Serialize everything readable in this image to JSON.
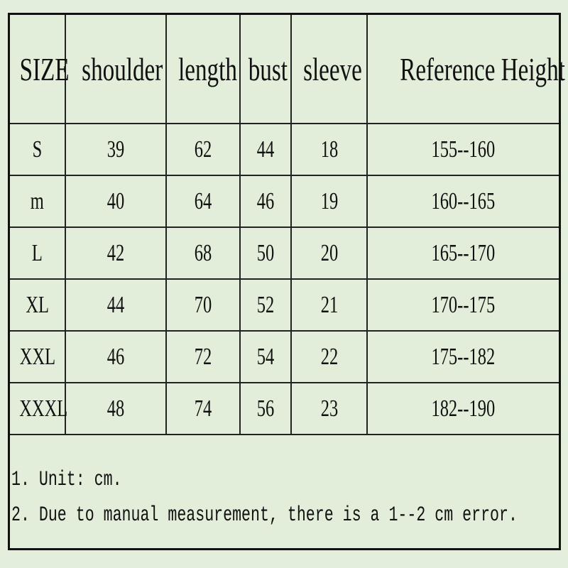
{
  "headers": [
    "SIZE",
    "shoulder",
    "length",
    "bust",
    "sleeve",
    "Reference Height"
  ],
  "rows": [
    [
      "S",
      "39",
      "62",
      "44",
      "18",
      "155--160"
    ],
    [
      "m",
      "40",
      "64",
      "46",
      "19",
      "160--165"
    ],
    [
      "L",
      "42",
      "68",
      "50",
      "20",
      "165--170"
    ],
    [
      "XL",
      "44",
      "70",
      "52",
      "21",
      "170--175"
    ],
    [
      "XXL",
      "46",
      "72",
      "54",
      "22",
      "175--182"
    ],
    [
      "XXXL",
      "48",
      "74",
      "56",
      "23",
      "182--190"
    ]
  ],
  "notes": [
    "1. Unit: cm.",
    "2. Due to manual measurement, there is a 1--2 cm error."
  ],
  "colors": {
    "background": "#e4eedd",
    "border": "#111111",
    "text": "#111111"
  }
}
